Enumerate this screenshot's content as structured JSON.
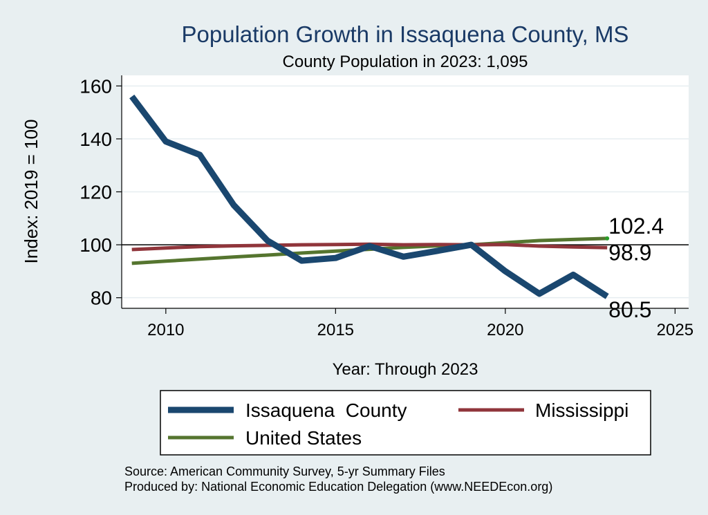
{
  "chart_data": {
    "type": "line",
    "title": "Population Growth in Issaquena County, MS",
    "subtitle": "County Population in 2023: 1,095",
    "xlabel": "Year: Through 2023",
    "ylabel": "Index: 2019 = 100",
    "xlim": [
      2008.7,
      2025.4
    ],
    "ylim": [
      76,
      164
    ],
    "xticks": [
      2010,
      2015,
      2020,
      2025
    ],
    "yticks": [
      80,
      100,
      120,
      140,
      160
    ],
    "reference_line": 100,
    "grid": true,
    "series": [
      {
        "name": "Issaquena  County",
        "color": "#1a476f",
        "x": [
          2009,
          2010,
          2011,
          2012,
          2013,
          2014,
          2015,
          2016,
          2017,
          2018,
          2019,
          2020,
          2021,
          2022,
          2023
        ],
        "values": [
          156,
          139,
          134,
          115,
          101.5,
          94,
          95,
          99.5,
          95.5,
          97.7,
          100,
          90,
          81.5,
          88.7,
          80.5
        ],
        "end_label": "80.5"
      },
      {
        "name": "Mississippi",
        "color": "#90353b",
        "x": [
          2009,
          2010,
          2011,
          2012,
          2013,
          2014,
          2015,
          2016,
          2017,
          2018,
          2019,
          2020,
          2021,
          2022,
          2023
        ],
        "values": [
          98.2,
          98.8,
          99.3,
          99.6,
          99.8,
          100.0,
          100.1,
          100.2,
          100.0,
          100.1,
          100,
          100.1,
          99.5,
          99.2,
          98.9
        ],
        "end_label": "98.9"
      },
      {
        "name": "United States",
        "color": "#55752f",
        "x": [
          2009,
          2010,
          2011,
          2012,
          2013,
          2014,
          2015,
          2016,
          2017,
          2018,
          2019,
          2020,
          2021,
          2022,
          2023
        ],
        "values": [
          93.0,
          93.8,
          94.6,
          95.4,
          96.1,
          96.9,
          97.6,
          98.3,
          99.0,
          99.6,
          100,
          100.8,
          101.6,
          102.0,
          102.4
        ],
        "end_label": "102.4"
      }
    ],
    "legend": {
      "items": [
        "Issaquena  County",
        "Mississippi",
        "United States"
      ],
      "placement": "bottom"
    },
    "notes": [
      "Source: American Community Survey, 5-yr Summary Files",
      "Produced by: National Economic Education Delegation (www.NEEDEcon.org)"
    ]
  }
}
